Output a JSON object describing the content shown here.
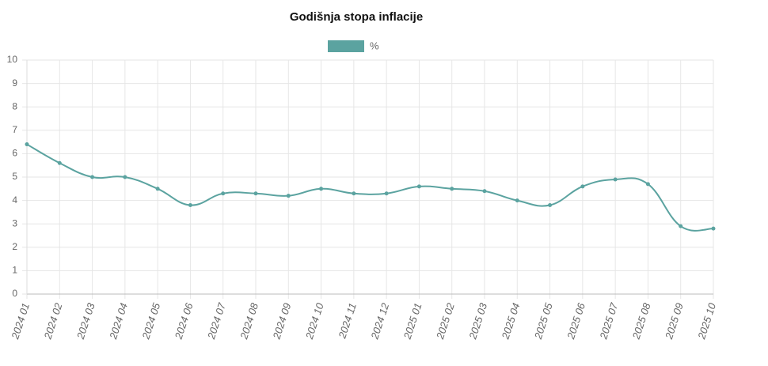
{
  "chart_data": {
    "type": "line",
    "title": "Godišnja stopa inflacije",
    "categories": [
      "2024 01",
      "2024 02",
      "2024 03",
      "2024 04",
      "2024 05",
      "2024 06",
      "2024 07",
      "2024 08",
      "2024 09",
      "2024 10",
      "2024 11",
      "2024 12",
      "2025 01",
      "2025 02",
      "2025 03",
      "2025 04",
      "2025 05",
      "2025 06",
      "2025 07",
      "2025 08",
      "2025 09",
      "2025 10"
    ],
    "series": [
      {
        "name": "%",
        "color": "#5ba3a0",
        "values": [
          6.4,
          5.6,
          5.0,
          5.0,
          4.5,
          3.8,
          4.3,
          4.3,
          4.2,
          4.5,
          4.3,
          4.3,
          4.6,
          4.5,
          4.4,
          4.0,
          3.8,
          4.6,
          4.9,
          4.7,
          2.9,
          2.8
        ]
      }
    ],
    "ylim": [
      0,
      10
    ],
    "yticks": [
      0,
      1,
      2,
      3,
      4,
      5,
      6,
      7,
      8,
      9,
      10
    ],
    "grid": true
  }
}
